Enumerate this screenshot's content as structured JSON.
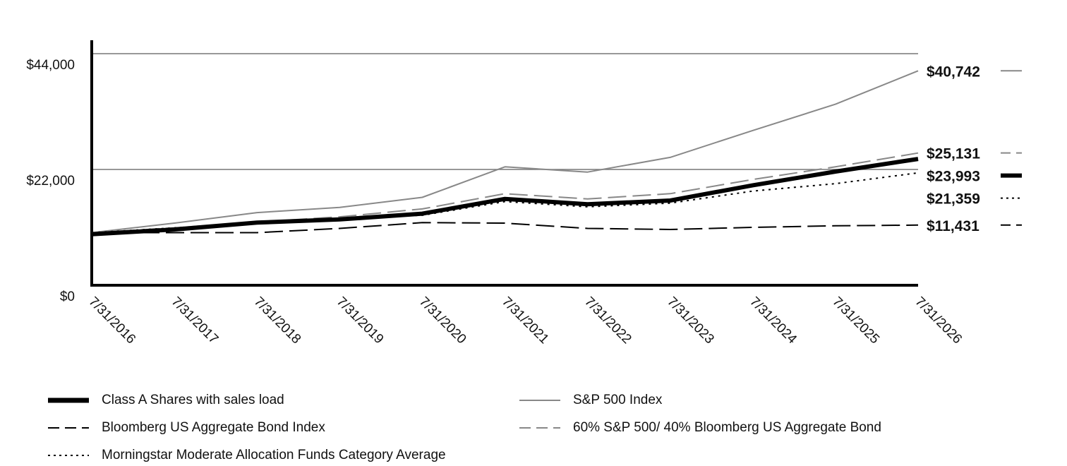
{
  "chart_data": {
    "type": "line",
    "x": [
      "7/31/2016",
      "7/31/2017",
      "7/31/2018",
      "7/31/2019",
      "7/31/2020",
      "7/31/2021",
      "7/31/2022",
      "7/31/2023",
      "7/31/2024",
      "7/31/2025",
      "7/31/2026"
    ],
    "ylim": [
      0,
      44000
    ],
    "y_ticks": [
      "$0",
      "$22,000",
      "$44,000"
    ],
    "gridlines": "horizontal",
    "series": [
      {
        "name": "Class A Shares with sales load",
        "values": [
          9700,
          10600,
          11900,
          12500,
          13600,
          16400,
          15400,
          16100,
          19000,
          21600,
          23993
        ],
        "end_label": "$23,993",
        "color": "#000000",
        "style": "thick-solid"
      },
      {
        "name": "S&P 500 Index",
        "values": [
          10000,
          11800,
          13800,
          14800,
          16700,
          22500,
          21500,
          24300,
          29400,
          34400,
          40742
        ],
        "end_label": "$40,742",
        "color": "#888888",
        "style": "solid"
      },
      {
        "name": "Bloomberg US Aggregate Bond Index",
        "values": [
          10000,
          10000,
          10000,
          10800,
          11900,
          11800,
          10800,
          10600,
          11000,
          11300,
          11431
        ],
        "end_label": "$11,431",
        "color": "#000000",
        "style": "long-dash"
      },
      {
        "name": "60% S&P 500/ 40% Bloomberg US Aggregate Bond",
        "values": [
          10000,
          10900,
          12000,
          13000,
          14500,
          17400,
          16400,
          17400,
          20100,
          22500,
          25131
        ],
        "end_label": "$25,131",
        "color": "#888888",
        "style": "long-dash"
      },
      {
        "name": "Morningstar Moderate Allocation Funds Category Average",
        "values": [
          10000,
          10900,
          11900,
          12700,
          13300,
          15900,
          14900,
          15600,
          17900,
          19300,
          21359
        ],
        "end_label": "$21,359",
        "color": "#000000",
        "style": "dotted"
      }
    ],
    "legend_position": "bottom"
  }
}
